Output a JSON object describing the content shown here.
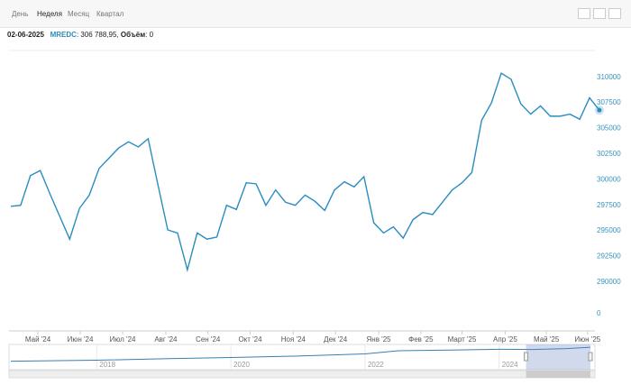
{
  "tabs": [
    "День",
    "Неделя",
    "Месяц",
    "Квартал"
  ],
  "active_tab": 1,
  "readout": {
    "date": "02-06-2025",
    "ticker": "MREDC",
    "value_label": "306 788,95",
    "volume_name": "Объём",
    "volume": 0
  },
  "chart_data": {
    "type": "line",
    "color": "#2a8cbf",
    "xlim": [
      0,
      59
    ],
    "xticks": [
      {
        "value": 2.76,
        "label": "Май '24"
      },
      {
        "value": 7.08,
        "label": "Июн '24"
      },
      {
        "value": 11.4,
        "label": "Июл '24"
      },
      {
        "value": 15.8,
        "label": "Авг '24"
      },
      {
        "value": 20.1,
        "label": "Сен '24"
      },
      {
        "value": 24.4,
        "label": "Окт '24"
      },
      {
        "value": 28.8,
        "label": "Ноя '24"
      },
      {
        "value": 33.1,
        "label": "Дек '24"
      },
      {
        "value": 37.5,
        "label": "Янв '25"
      },
      {
        "value": 41.8,
        "label": "Фев '25"
      },
      {
        "value": 46.0,
        "label": "Март '25"
      },
      {
        "value": 50.4,
        "label": "Апр '25"
      },
      {
        "value": 54.6,
        "label": "Май '25"
      },
      {
        "value": 58.8,
        "label": "Июн '25"
      }
    ],
    "ylim": [
      288500,
      312700
    ],
    "yticks": [
      290000,
      292500,
      295000,
      297500,
      300000,
      302500,
      305000,
      307500,
      310000
    ],
    "volume_yticks": [
      0
    ],
    "values": [
      297400,
      297500,
      300400,
      300900,
      298600,
      296400,
      294200,
      297200,
      298500,
      301100,
      302100,
      303100,
      303700,
      303200,
      304000,
      299500,
      295100,
      294800,
      291200,
      294800,
      294200,
      294400,
      297500,
      297100,
      299700,
      299600,
      297500,
      299000,
      297800,
      297500,
      298500,
      297900,
      297000,
      299000,
      299800,
      299300,
      300300,
      295800,
      294800,
      295400,
      294300,
      296100,
      296800,
      296600,
      297800,
      299000,
      299700,
      300700,
      305800,
      307500,
      310400,
      309800,
      307400,
      306400,
      307200,
      306200,
      306200,
      306400,
      305900,
      308000,
      306788.95
    ],
    "navigator": {
      "xlim": [
        2016.72,
        2025.36
      ],
      "ylim": [
        200000,
        320000
      ],
      "xticks": [
        2018,
        2020,
        2022,
        2024
      ],
      "x": [
        2016.72,
        2018,
        2019,
        2020,
        2021,
        2022,
        2022.5,
        2023,
        2024,
        2024.5,
        2025,
        2025.36
      ],
      "values": [
        240000,
        245000,
        252000,
        258000,
        265000,
        275000,
        290000,
        292000,
        297000,
        296000,
        300000,
        306800
      ],
      "selection": [
        2024.4,
        2025.36
      ]
    }
  }
}
